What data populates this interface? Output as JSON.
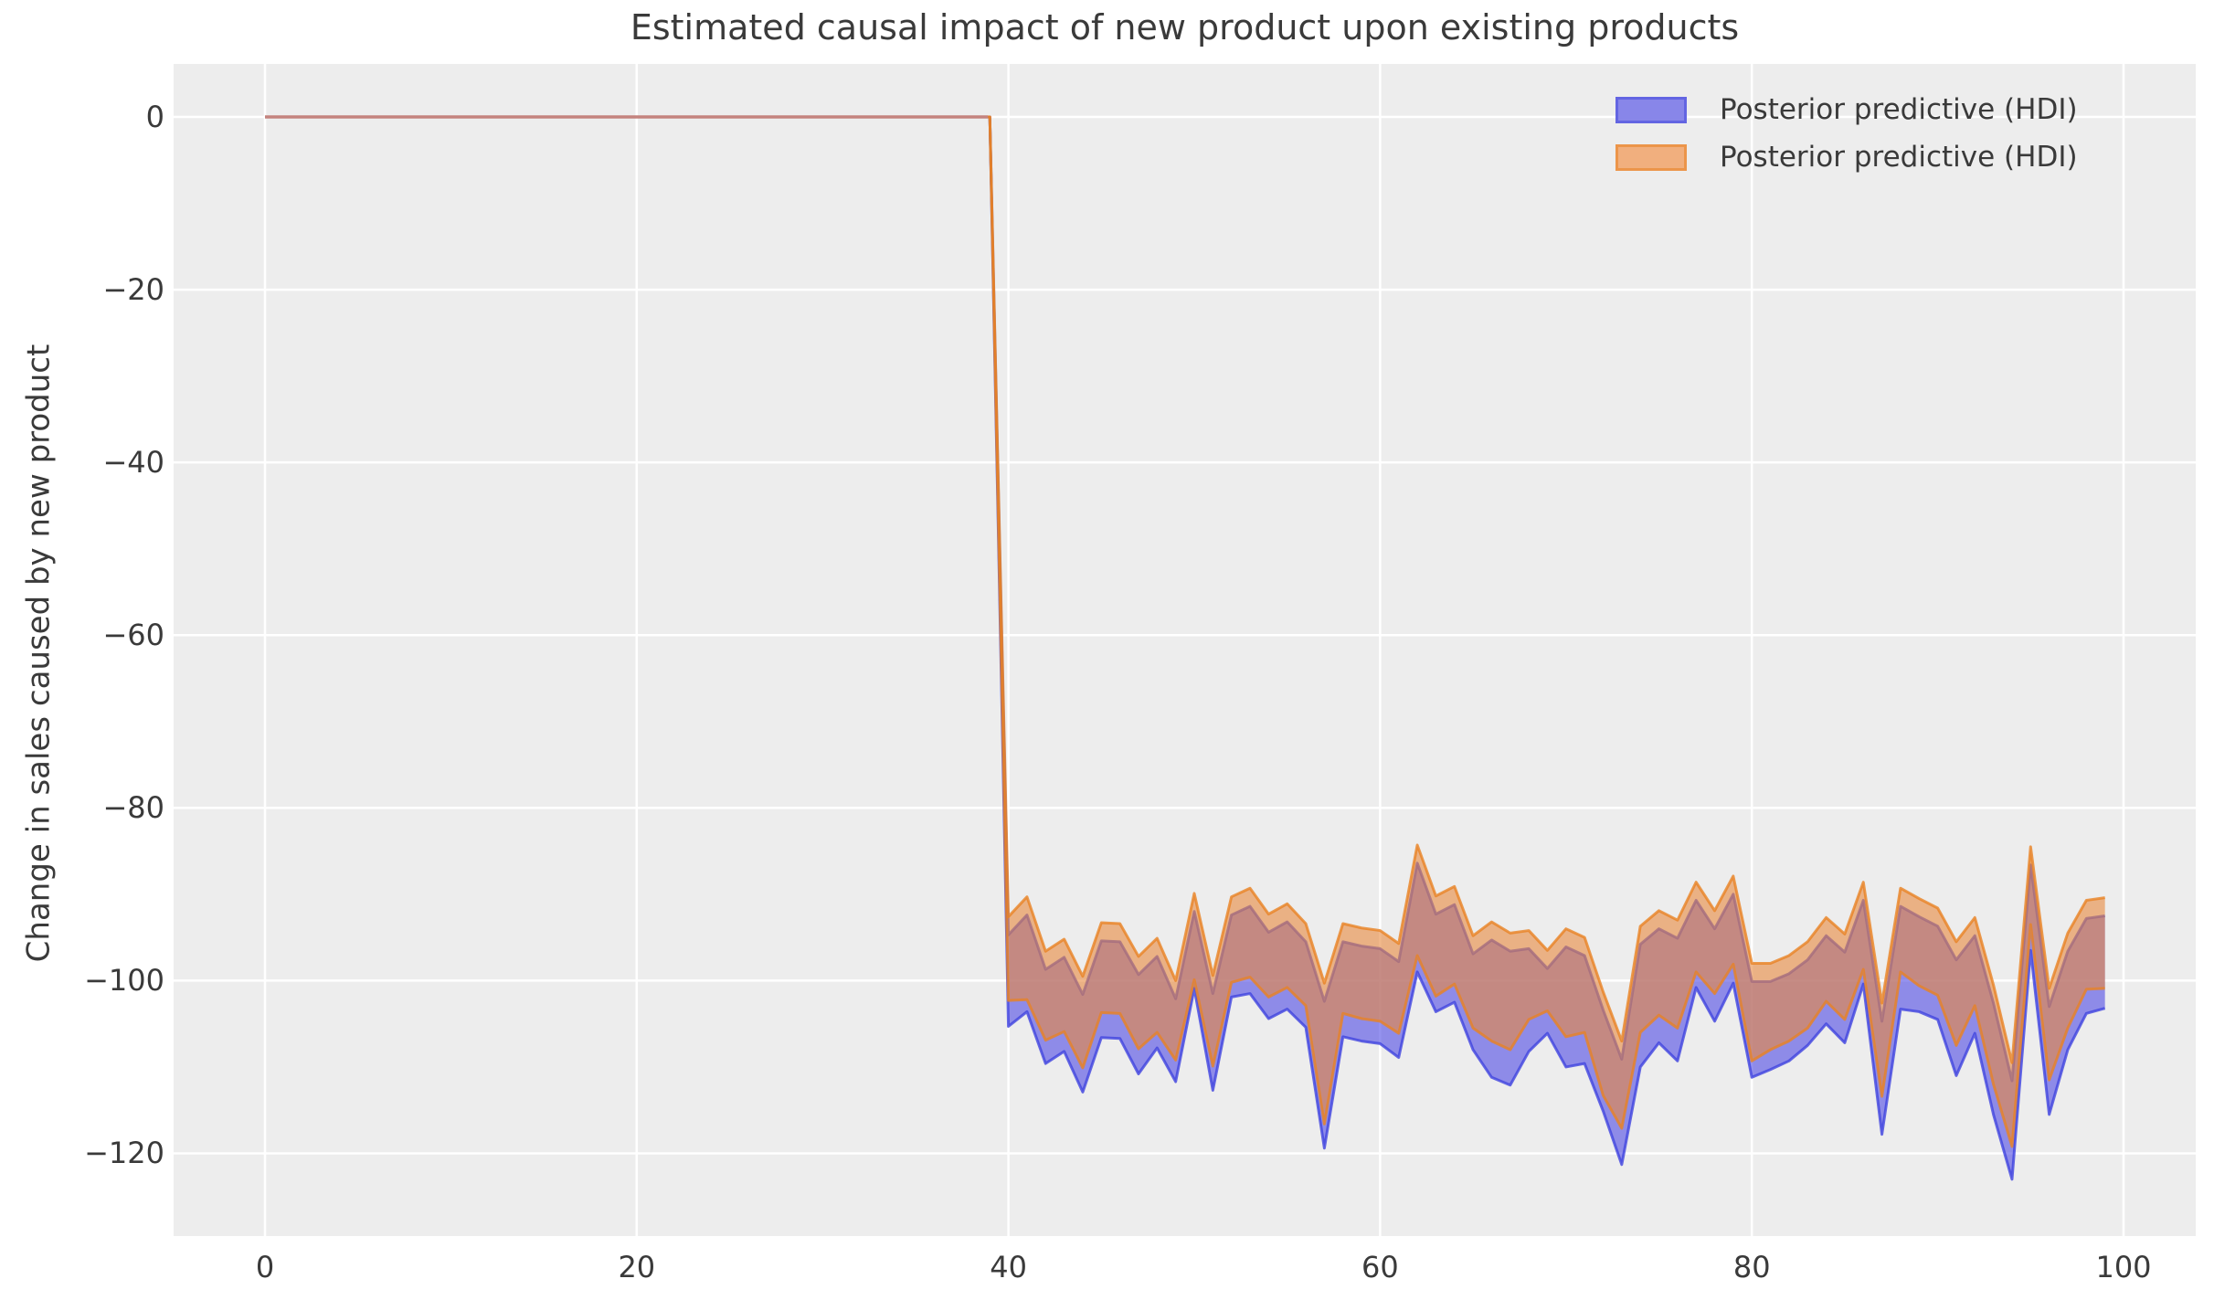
{
  "figure": {
    "title": "Estimated causal impact of new product upon existing products",
    "ylabel": "Change in sales caused by new product"
  },
  "legend": {
    "items": [
      {
        "label": "Posterior predictive (HDI)",
        "swatch_fill": "#8886e9",
        "swatch_edge": "#6365e2"
      },
      {
        "label": "Posterior predictive (HDI)",
        "swatch_fill": "#f1af7e",
        "swatch_edge": "#ec954a"
      }
    ]
  },
  "colors": {
    "figure_bg": "#ffffff",
    "axes_bg": "#ededed",
    "grid": "#ffffff",
    "text": "#3a3a3a",
    "blue_fill": "rgba(78,74,229,0.6)",
    "blue_edge": "rgba(62,66,222,0.8)",
    "orange_fill": "rgba(231,137,62,0.6)",
    "orange_edge": "rgba(233,130,35,0.8)",
    "pre_line": "#c4837e"
  },
  "chart_data": {
    "type": "area",
    "title": "Estimated causal impact of new product upon existing products",
    "xlabel": "",
    "ylabel": "Change in sales caused by new product",
    "x_ticks": [
      0,
      20,
      40,
      60,
      80,
      100
    ],
    "y_ticks": [
      0,
      -20,
      -40,
      -60,
      -80,
      -100,
      -120
    ],
    "grid": true,
    "legend_position": "upper right",
    "pre_period": {
      "x_start": 0,
      "x_end": 39,
      "value": 0
    },
    "post_x_start": 40,
    "series": [
      {
        "name": "blue-band",
        "label": "Posterior predictive (HDI)",
        "hi": [
          -94.7,
          -92.4,
          -98.7,
          -97.3,
          -101.6,
          -95.4,
          -95.5,
          -99.3,
          -97.2,
          -102.1,
          -92.0,
          -101.5,
          -92.4,
          -91.4,
          -94.4,
          -93.2,
          -95.5,
          -102.4,
          -95.5,
          -96.0,
          -96.3,
          -97.8,
          -86.4,
          -92.3,
          -91.2,
          -96.9,
          -95.3,
          -96.6,
          -96.3,
          -98.6,
          -96.1,
          -97.1,
          -103.4,
          -109.1,
          -95.8,
          -94.0,
          -95.1,
          -90.7,
          -94.0,
          -90.0,
          -100.1,
          -100.1,
          -99.2,
          -97.6,
          -94.8,
          -96.7,
          -90.7,
          -104.7,
          -91.4,
          -92.6,
          -93.7,
          -97.6,
          -94.8,
          -102.6,
          -111.6,
          -86.6,
          -103.0,
          -96.6,
          -92.8,
          -92.5
        ],
        "lo": [
          -105.3,
          -103.6,
          -109.6,
          -108.2,
          -112.9,
          -106.6,
          -106.7,
          -110.8,
          -107.8,
          -111.7,
          -100.9,
          -112.7,
          -101.9,
          -101.5,
          -104.4,
          -103.3,
          -105.4,
          -119.4,
          -106.5,
          -107.0,
          -107.3,
          -108.9,
          -99.0,
          -103.6,
          -102.5,
          -108.0,
          -111.2,
          -112.1,
          -108.2,
          -106.1,
          -110.0,
          -109.6,
          -115.1,
          -121.3,
          -110.0,
          -107.2,
          -109.3,
          -100.8,
          -104.7,
          -100.3,
          -111.2,
          -110.3,
          -109.3,
          -107.5,
          -105.0,
          -107.2,
          -100.4,
          -117.8,
          -103.3,
          -103.6,
          -104.5,
          -111.0,
          -106.1,
          -115.5,
          -123.0,
          -96.5,
          -115.5,
          -108.0,
          -103.8,
          -103.2
        ]
      },
      {
        "name": "orange-band",
        "label": "Posterior predictive (HDI)",
        "hi": [
          -92.6,
          -90.3,
          -96.6,
          -95.2,
          -99.5,
          -93.3,
          -93.4,
          -97.2,
          -95.1,
          -100.0,
          -89.9,
          -99.4,
          -90.3,
          -89.3,
          -92.3,
          -91.1,
          -93.4,
          -100.3,
          -93.4,
          -93.9,
          -94.2,
          -95.7,
          -84.3,
          -90.2,
          -89.1,
          -94.8,
          -93.2,
          -94.5,
          -94.2,
          -96.5,
          -94.0,
          -95.0,
          -101.3,
          -107.0,
          -93.7,
          -91.9,
          -93.0,
          -88.6,
          -91.9,
          -87.9,
          -98.0,
          -98.0,
          -97.1,
          -95.5,
          -92.7,
          -94.6,
          -88.6,
          -102.6,
          -89.3,
          -90.5,
          -91.6,
          -95.5,
          -92.7,
          -100.5,
          -109.5,
          -84.5,
          -100.9,
          -94.5,
          -90.7,
          -90.4
        ],
        "lo": [
          -102.3,
          -102.2,
          -106.9,
          -105.9,
          -110.1,
          -103.7,
          -103.8,
          -107.9,
          -106.0,
          -109.2,
          -99.9,
          -109.9,
          -100.2,
          -99.6,
          -101.9,
          -100.8,
          -102.9,
          -116.6,
          -103.8,
          -104.4,
          -104.7,
          -106.1,
          -97.1,
          -101.8,
          -100.4,
          -105.5,
          -107.0,
          -108.0,
          -104.5,
          -103.5,
          -106.5,
          -106.0,
          -113.3,
          -117.1,
          -106.0,
          -104.0,
          -105.5,
          -99.0,
          -101.5,
          -98.1,
          -109.3,
          -108.0,
          -107.0,
          -105.5,
          -102.4,
          -104.5,
          -98.7,
          -113.4,
          -99.0,
          -100.6,
          -101.7,
          -107.5,
          -102.9,
          -112.0,
          -119.2,
          -93.5,
          -111.5,
          -105.5,
          -101.0,
          -100.9
        ]
      }
    ]
  }
}
